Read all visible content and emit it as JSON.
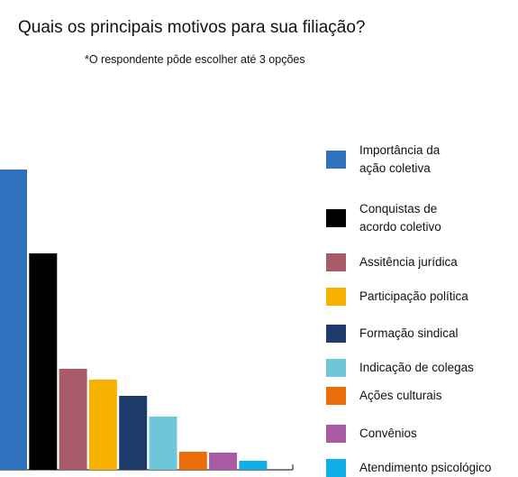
{
  "chart_data": {
    "type": "bar",
    "title": "Quais os principais motivos para sua filiação?",
    "subtitle": "*O respondente pôde escolher até 3 opções",
    "categories": [
      "Importância da\nação coletiva",
      "Conquistas de\nacordo coletivo",
      "Assitência jurídica",
      "Participação política",
      "Formação sindical",
      "Indicação de colegas",
      "Ações culturais",
      "Convênios",
      "Atendimento psicológico"
    ],
    "values": [
      333,
      240,
      112,
      100,
      82,
      59,
      20,
      19,
      10
    ],
    "colors": [
      "#2f73bf",
      "#000000",
      "#a85a68",
      "#f9b100",
      "#1e3a6a",
      "#6ec6d8",
      "#ee6d0b",
      "#a95aa4",
      "#10aee8"
    ],
    "legend": "right"
  }
}
